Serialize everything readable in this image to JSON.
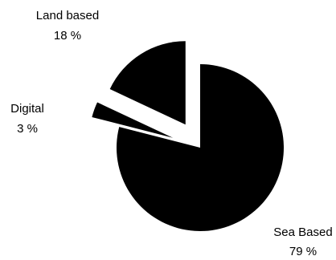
{
  "chart_data": {
    "type": "pie",
    "exploded": true,
    "slices": [
      {
        "label": "Sea Based",
        "value": 79,
        "value_label": "79 %",
        "color": "#000000"
      },
      {
        "label": "Digital",
        "value": 3,
        "value_label": "3 %",
        "color": "#000000"
      },
      {
        "label": "Land based",
        "value": 18,
        "value_label": "18 %",
        "color": "#000000"
      }
    ],
    "legend": "none"
  }
}
